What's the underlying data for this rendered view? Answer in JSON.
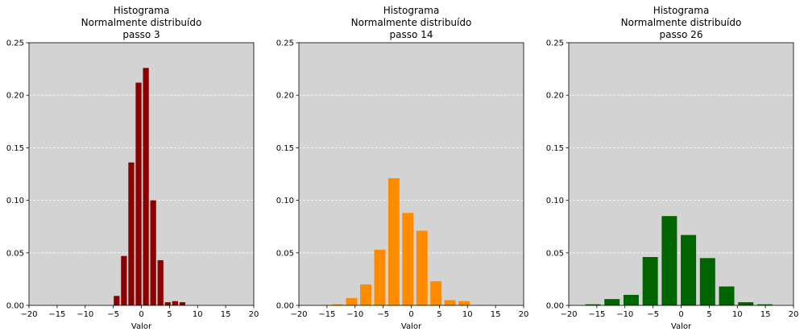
{
  "chart_data": [
    {
      "type": "bar",
      "title": [
        "Histograma",
        "Normalmente distribuído",
        "passo 3"
      ],
      "xlabel": "Valor",
      "ylabel": "",
      "xlim": [
        -20,
        20
      ],
      "ylim": [
        0,
        0.25
      ],
      "xticks": [
        "−20",
        "−15",
        "−10",
        "−5",
        "0",
        "5",
        "10",
        "15",
        "20"
      ],
      "yticks": [
        "0.00",
        "0.05",
        "0.10",
        "0.15",
        "0.20",
        "0.25"
      ],
      "grid": "y",
      "background": "#d3d3d3",
      "color": "#8b0000",
      "bin_width": 1.3,
      "x": [
        -4.4,
        -3.1,
        -1.8,
        -0.5,
        0.8,
        2.1,
        3.4,
        4.7,
        6.0,
        7.3
      ],
      "values": [
        0.009,
        0.047,
        0.136,
        0.212,
        0.226,
        0.1,
        0.043,
        0.003,
        0.004,
        0.003
      ]
    },
    {
      "type": "bar",
      "title": [
        "Histograma",
        "Normalmente distribuído",
        "passo 14"
      ],
      "xlabel": "Valor",
      "ylabel": "",
      "xlim": [
        -20,
        20
      ],
      "ylim": [
        0,
        0.25
      ],
      "xticks": [
        "−20",
        "−15",
        "−10",
        "−5",
        "0",
        "5",
        "10",
        "15",
        "20"
      ],
      "yticks": [
        "0.00",
        "0.05",
        "0.10",
        "0.15",
        "0.20",
        "0.25"
      ],
      "grid": "y",
      "background": "#d3d3d3",
      "color": "#ff8c00",
      "bin_width": 2.5,
      "x": [
        -15.6,
        -13.1,
        -10.6,
        -8.1,
        -5.6,
        -3.1,
        -0.6,
        1.9,
        4.4,
        6.9,
        9.4,
        11.9
      ],
      "values": [
        0.0003,
        0.001,
        0.007,
        0.02,
        0.053,
        0.121,
        0.088,
        0.071,
        0.023,
        0.005,
        0.004,
        0.0003
      ]
    },
    {
      "type": "bar",
      "title": [
        "Histograma",
        "Normalmente distribuído",
        "passo 26"
      ],
      "xlabel": "Valor",
      "ylabel": "",
      "xlim": [
        -20,
        20
      ],
      "ylim": [
        0,
        0.25
      ],
      "xticks": [
        "−20",
        "−15",
        "−10",
        "−5",
        "0",
        "5",
        "10",
        "15",
        "20"
      ],
      "yticks": [
        "0.00",
        "0.05",
        "0.10",
        "0.15",
        "0.20",
        "0.25"
      ],
      "grid": "y",
      "background": "#d3d3d3",
      "color": "#006400",
      "bin_width": 3.4,
      "x": [
        -15.7,
        -12.3,
        -8.9,
        -5.5,
        -2.1,
        1.3,
        4.7,
        8.1,
        11.5,
        14.9
      ],
      "values": [
        0.001,
        0.006,
        0.01,
        0.046,
        0.085,
        0.067,
        0.045,
        0.018,
        0.003,
        0.001
      ]
    }
  ]
}
